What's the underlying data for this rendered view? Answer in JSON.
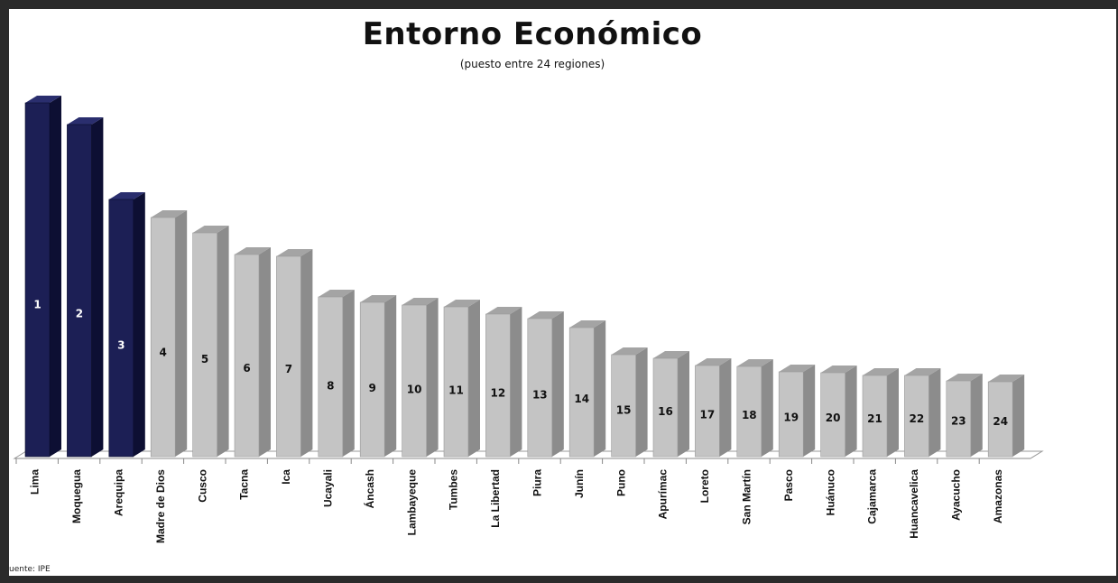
{
  "title": "Entorno Económico",
  "subtitle": "(puesto entre 24 regiones)",
  "source": "uente: IPE",
  "colors": {
    "highlight": "#1c1f55",
    "highlight_side": "#0d0f33",
    "highlight_top": "#2a2e6e",
    "normal": "#c4c4c4",
    "normal_side": "#8c8c8c",
    "normal_top": "#a4a4a4",
    "frame": "#2b2b2b"
  },
  "chart_data": {
    "type": "bar",
    "title": "Entorno Económico",
    "subtitle": "(puesto entre 24 regiones)",
    "categories": [
      "Lima",
      "Moquegua",
      "Arequipa",
      "Madre de Dios",
      "Cusco",
      "Tacna",
      "Ica",
      "Ucayali",
      "Áncash",
      "Lambayeque",
      "Tumbes",
      "La Libertad",
      "Piura",
      "Junín",
      "Puno",
      "Apurímac",
      "Loreto",
      "San Martín",
      "Pasco",
      "Huánuco",
      "Cajamarca",
      "Huancavelica",
      "Ayacucho",
      "Amazonas"
    ],
    "values": [
      392,
      368,
      285,
      265,
      248,
      224,
      222,
      177,
      171,
      168,
      166,
      158,
      153,
      143,
      113,
      109,
      101,
      100,
      94,
      93,
      90,
      90,
      84,
      83
    ],
    "labels": [
      "1",
      "2",
      "3",
      "4",
      "5",
      "6",
      "7",
      "8",
      "9",
      "10",
      "11",
      "12",
      "13",
      "14",
      "15",
      "16",
      "17",
      "18",
      "19",
      "20",
      "21",
      "22",
      "23",
      "24"
    ],
    "highlighted": [
      0,
      1,
      2
    ],
    "ylim": [
      0,
      400
    ],
    "xlabel": "",
    "ylabel": "",
    "grid": false,
    "legend": "none"
  }
}
